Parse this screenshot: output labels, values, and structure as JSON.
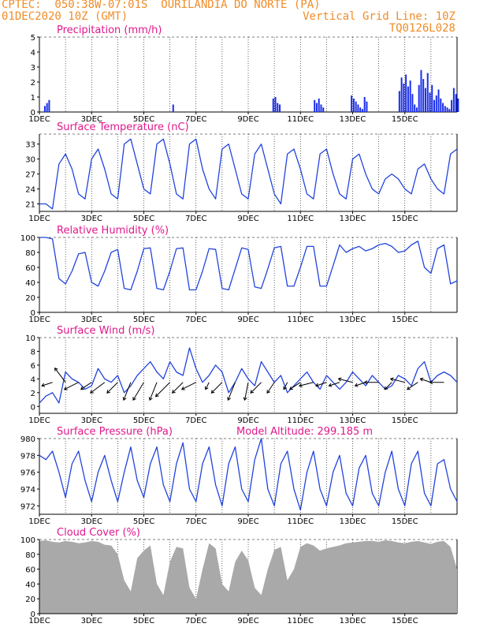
{
  "header": {
    "line1_left": "CPTEC:  050:38W-07:01S  OURILANDIA DO NORTE (PA)",
    "line2_left": "01DEC2020 10Z (GMT)",
    "line2_right": "Vertical Grid Line: 10Z",
    "line3_right": "TQ0126L028"
  },
  "colors": {
    "line": "#2244dd",
    "bar": "#1a2eea",
    "cloud": "#a9a9a9",
    "title": "#e0188c",
    "header": "#f08c28"
  },
  "chart_data": [
    {
      "type": "bar",
      "title": "Precipitation (mm/h)",
      "x_labels": [
        "1DEC",
        "3DEC",
        "5DEC",
        "7DEC",
        "9DEC",
        "11DEC",
        "13DEC",
        "15DEC"
      ],
      "ylim": [
        0,
        5
      ],
      "yticks": [
        0,
        1,
        2,
        3,
        4,
        5
      ],
      "x_unit": "hours since 01DEC2020 10Z",
      "x": [
        5,
        7,
        9,
        123,
        215,
        217,
        219,
        221,
        253,
        255,
        257,
        259,
        261,
        287,
        289,
        291,
        293,
        295,
        297,
        299,
        301,
        331,
        333,
        335,
        337,
        339,
        341,
        343,
        345,
        347,
        349,
        351,
        353,
        355,
        357,
        359,
        361,
        363,
        365,
        367,
        369,
        371,
        373,
        375,
        377,
        379,
        381,
        383,
        385
      ],
      "values": [
        0.4,
        0.6,
        0.8,
        0.5,
        0.9,
        1.0,
        0.6,
        0.5,
        0.8,
        0.6,
        0.9,
        0.5,
        0.3,
        1.1,
        0.9,
        0.7,
        0.5,
        0.3,
        0.2,
        1.0,
        0.7,
        1.4,
        2.3,
        1.9,
        2.5,
        1.7,
        2.1,
        1.2,
        0.5,
        0.3,
        1.8,
        2.8,
        2.2,
        1.6,
        2.6,
        1.3,
        1.8,
        0.8,
        1.1,
        1.5,
        0.9,
        0.6,
        0.4,
        0.3,
        0.2,
        0.8,
        1.6,
        1.2,
        0.9
      ]
    },
    {
      "type": "line",
      "title": "Surface Temperature (nC)",
      "x_labels": [
        "1DEC",
        "3DEC",
        "5DEC",
        "7DEC",
        "9DEC",
        "11DEC",
        "13DEC",
        "15DEC"
      ],
      "ylim": [
        19.5,
        35
      ],
      "yticks": [
        21,
        24,
        27,
        30,
        33
      ],
      "x_unit": "hours since 01DEC2020 10Z",
      "x": [
        0,
        6,
        12,
        18,
        24,
        30,
        36,
        42,
        48,
        54,
        60,
        66,
        72,
        78,
        84,
        90,
        96,
        102,
        108,
        114,
        120,
        126,
        132,
        138,
        144,
        150,
        156,
        162,
        168,
        174,
        180,
        186,
        192,
        198,
        204,
        210,
        216,
        222,
        228,
        234,
        240,
        246,
        252,
        258,
        264,
        270,
        276,
        282,
        288,
        294,
        300,
        306,
        312,
        318,
        324,
        330,
        336,
        342,
        348,
        354,
        360,
        366,
        372,
        378,
        384
      ],
      "values": [
        21,
        21,
        20,
        29,
        31,
        28,
        23,
        22,
        30,
        32,
        28,
        23,
        22,
        33,
        34,
        29,
        24,
        23,
        33,
        34,
        29,
        23,
        22,
        33,
        34,
        28,
        24,
        22,
        32,
        33,
        28,
        23,
        22,
        31,
        33,
        28,
        23,
        21,
        31,
        32,
        28,
        23,
        22,
        31,
        32,
        27,
        23,
        22,
        30,
        31,
        27,
        24,
        23,
        26,
        27,
        26,
        24,
        23,
        28,
        29,
        26,
        24,
        23,
        31,
        32
      ]
    },
    {
      "type": "line",
      "title": "Relative Humidity (%)",
      "x_labels": [
        "1DEC",
        "3DEC",
        "5DEC",
        "7DEC",
        "9DEC",
        "11DEC",
        "13DEC",
        "15DEC"
      ],
      "ylim": [
        0,
        100
      ],
      "yticks": [
        0,
        20,
        40,
        60,
        80,
        100
      ],
      "x_unit": "hours since 01DEC2020 10Z",
      "x": [
        0,
        6,
        12,
        18,
        24,
        30,
        36,
        42,
        48,
        54,
        60,
        66,
        72,
        78,
        84,
        90,
        96,
        102,
        108,
        114,
        120,
        126,
        132,
        138,
        144,
        150,
        156,
        162,
        168,
        174,
        180,
        186,
        192,
        198,
        204,
        210,
        216,
        222,
        228,
        234,
        240,
        246,
        252,
        258,
        264,
        270,
        276,
        282,
        288,
        294,
        300,
        306,
        312,
        318,
        324,
        330,
        336,
        342,
        348,
        354,
        360,
        366,
        372,
        378,
        384
      ],
      "values": [
        100,
        100,
        98,
        45,
        38,
        55,
        78,
        80,
        40,
        35,
        55,
        80,
        84,
        32,
        30,
        55,
        85,
        86,
        32,
        30,
        55,
        85,
        86,
        30,
        30,
        55,
        85,
        84,
        32,
        30,
        58,
        86,
        84,
        34,
        32,
        58,
        86,
        88,
        35,
        35,
        60,
        88,
        88,
        35,
        35,
        62,
        90,
        80,
        85,
        88,
        82,
        85,
        90,
        92,
        88,
        80,
        82,
        90,
        95,
        60,
        52,
        85,
        90,
        38,
        42
      ]
    },
    {
      "type": "line",
      "title": "Surface Wind (m/s)",
      "x_labels": [
        "1DEC",
        "3DEC",
        "5DEC",
        "7DEC",
        "9DEC",
        "11DEC",
        "13DEC",
        "15DEC"
      ],
      "ylim": [
        -1,
        10
      ],
      "yticks": [
        0,
        2,
        4,
        6,
        8,
        10
      ],
      "x_unit": "hours since 01DEC2020 10Z",
      "x": [
        0,
        6,
        12,
        18,
        24,
        30,
        36,
        42,
        48,
        54,
        60,
        66,
        72,
        78,
        84,
        90,
        96,
        102,
        108,
        114,
        120,
        126,
        132,
        138,
        144,
        150,
        156,
        162,
        168,
        174,
        180,
        186,
        192,
        198,
        204,
        210,
        216,
        222,
        228,
        234,
        240,
        246,
        252,
        258,
        264,
        270,
        276,
        282,
        288,
        294,
        300,
        306,
        312,
        318,
        324,
        330,
        336,
        342,
        348,
        354,
        360,
        366,
        372,
        378,
        384
      ],
      "values": [
        0.5,
        1.5,
        2.0,
        0.5,
        5.0,
        4.0,
        3.5,
        2.5,
        3.0,
        5.5,
        4.0,
        3.5,
        4.5,
        2.0,
        3.0,
        4.5,
        5.5,
        6.5,
        5.0,
        4.0,
        6.5,
        5.0,
        4.5,
        8.5,
        5.5,
        3.5,
        4.5,
        6.0,
        5.0,
        2.0,
        3.5,
        5.5,
        4.0,
        3.0,
        6.5,
        5.0,
        3.5,
        4.5,
        2.0,
        3.0,
        4.0,
        5.0,
        3.5,
        2.5,
        4.5,
        3.5,
        2.5,
        3.5,
        5.0,
        4.0,
        3.0,
        4.5,
        3.5,
        2.5,
        3.0,
        4.5,
        4.0,
        3.0,
        5.5,
        6.5,
        3.5,
        4.5,
        5.0,
        4.5,
        3.5
      ]
    },
    {
      "type": "line",
      "title": "Surface Pressure (hPa)",
      "subtitle": "Model Altitude: 299.185 m",
      "x_labels": [
        "1DEC",
        "3DEC",
        "5DEC",
        "7DEC",
        "9DEC",
        "11DEC",
        "13DEC",
        "15DEC"
      ],
      "ylim": [
        971,
        980
      ],
      "yticks": [
        972,
        974,
        976,
        978,
        980
      ],
      "x_unit": "hours since 01DEC2020 10Z",
      "x": [
        0,
        6,
        12,
        18,
        24,
        30,
        36,
        42,
        48,
        54,
        60,
        66,
        72,
        78,
        84,
        90,
        96,
        102,
        108,
        114,
        120,
        126,
        132,
        138,
        144,
        150,
        156,
        162,
        168,
        174,
        180,
        186,
        192,
        198,
        204,
        210,
        216,
        222,
        228,
        234,
        240,
        246,
        252,
        258,
        264,
        270,
        276,
        282,
        288,
        294,
        300,
        306,
        312,
        318,
        324,
        330,
        336,
        342,
        348,
        354,
        360,
        366,
        372,
        378,
        384
      ],
      "values": [
        978,
        977.5,
        978.5,
        976,
        973,
        977,
        978.5,
        975,
        972.5,
        976,
        978,
        975,
        972.5,
        976,
        979,
        975,
        973,
        977,
        979,
        974.5,
        972.5,
        977,
        979.5,
        974,
        972.5,
        977,
        979,
        974.5,
        972,
        977,
        979,
        974,
        972.5,
        977.5,
        980,
        974,
        972,
        977,
        978.5,
        974,
        971.5,
        976,
        978.5,
        974,
        972,
        976,
        978,
        973.5,
        972,
        976.5,
        978,
        973.5,
        972,
        976,
        978.5,
        974,
        972,
        977,
        978.5,
        973.5,
        972,
        977,
        977.5,
        974,
        972.5
      ]
    },
    {
      "type": "area",
      "title": "Cloud Cover (%)",
      "x_labels": [
        "1DEC",
        "3DEC",
        "5DEC",
        "7DEC",
        "9DEC",
        "11DEC",
        "13DEC",
        "15DEC"
      ],
      "ylim": [
        0,
        100
      ],
      "yticks": [
        0,
        20,
        40,
        60,
        80,
        100
      ],
      "x_unit": "hours since 01DEC2020 10Z",
      "x": [
        0,
        6,
        12,
        18,
        24,
        30,
        36,
        42,
        48,
        54,
        60,
        66,
        72,
        78,
        84,
        90,
        96,
        102,
        108,
        114,
        120,
        126,
        132,
        138,
        144,
        150,
        156,
        162,
        168,
        174,
        180,
        186,
        192,
        198,
        204,
        210,
        216,
        222,
        228,
        234,
        240,
        246,
        252,
        258,
        264,
        270,
        276,
        282,
        288,
        294,
        300,
        306,
        312,
        318,
        324,
        330,
        336,
        342,
        348,
        354,
        360,
        366,
        372,
        378,
        384
      ],
      "values": [
        98,
        99,
        97,
        96,
        98,
        97,
        95,
        96,
        98,
        97,
        93,
        92,
        80,
        45,
        30,
        75,
        85,
        92,
        40,
        25,
        70,
        90,
        88,
        35,
        20,
        60,
        95,
        88,
        40,
        30,
        70,
        85,
        72,
        35,
        25,
        60,
        86,
        90,
        45,
        60,
        90,
        95,
        92,
        85,
        88,
        90,
        92,
        95,
        96,
        97,
        98,
        98,
        97,
        99,
        98,
        96,
        95,
        97,
        98,
        96,
        94,
        97,
        98,
        90,
        60
      ]
    }
  ],
  "wind_vectors": {
    "x": [
      12,
      24,
      36,
      48,
      60,
      72,
      84,
      96,
      108,
      120,
      132,
      144,
      156,
      168,
      180,
      192,
      204,
      216,
      228,
      240,
      252,
      264,
      276,
      288,
      300,
      312,
      324,
      336,
      348,
      360,
      372
    ],
    "u": [
      -1.5,
      -1.5,
      -2.0,
      -1.5,
      -2.0,
      -1.5,
      -1.0,
      -1.5,
      -1.0,
      -2.0,
      -1.5,
      -2.0,
      -0.5,
      -1.5,
      -1.0,
      -0.5,
      -1.5,
      -1.0,
      -0.5,
      -1.5,
      -2.0,
      -1.5,
      -1.5,
      -2.0,
      -1.5,
      -2.0,
      -1.0,
      -2.0,
      -1.5,
      -1.5,
      -2.0
    ],
    "v": [
      -0.5,
      2.0,
      -1.0,
      -1.0,
      -1.5,
      -1.5,
      -2.5,
      -2.5,
      -2.5,
      -2.0,
      -1.5,
      -1.0,
      -1.0,
      -1.5,
      -2.5,
      -2.5,
      -1.5,
      -1.5,
      -1.0,
      -1.0,
      -0.5,
      -0.5,
      -0.5,
      0.5,
      -0.5,
      0.0,
      -1.0,
      0.5,
      -1.0,
      0.5,
      0.0
    ]
  }
}
